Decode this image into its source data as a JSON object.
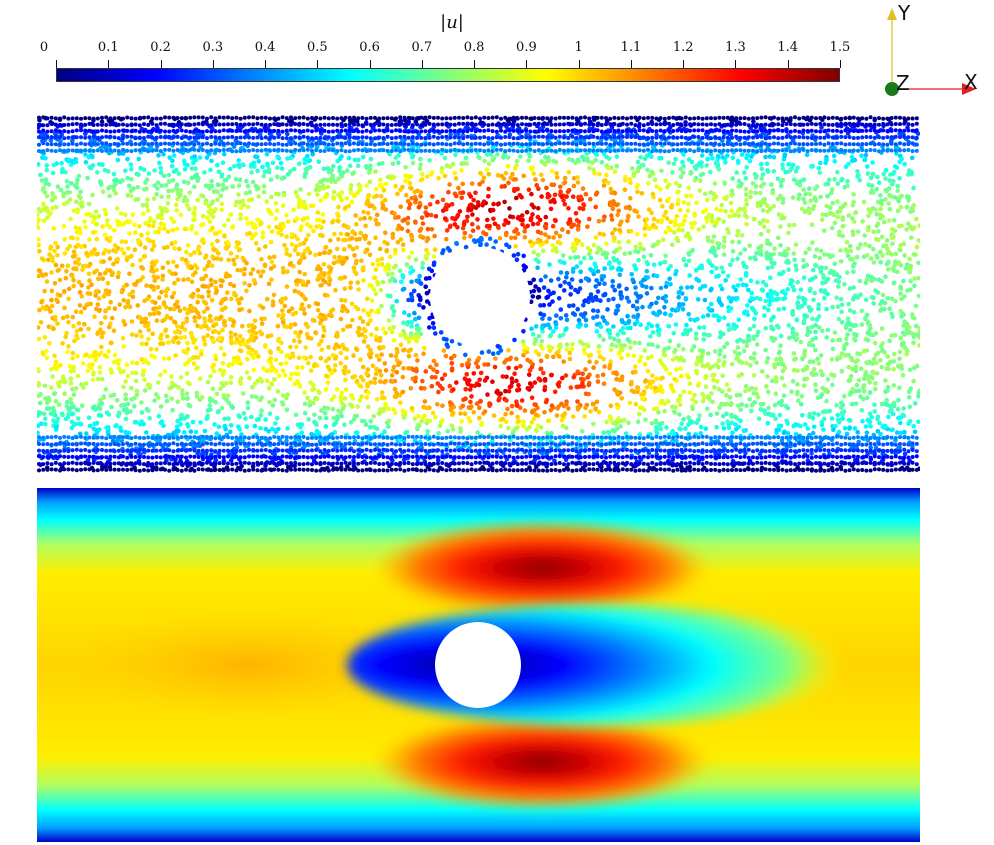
{
  "colorbar": {
    "title": "|u|",
    "ticks": [
      "0",
      "0.1",
      "0.2",
      "0.3",
      "0.4",
      "0.5",
      "0.6",
      "0.7",
      "0.8",
      "0.9",
      "1",
      "1.1",
      "1.2",
      "1.3",
      "1.4",
      "1.5"
    ],
    "range": [
      0,
      1.5
    ],
    "colormap": [
      "#000080",
      "#0000ff",
      "#0080ff",
      "#00ffff",
      "#80ff80",
      "#ffff00",
      "#ff8000",
      "#ff0000",
      "#800000"
    ]
  },
  "axes": {
    "x_label": "X",
    "y_label": "Y",
    "z_label": "Z",
    "x_color": "#e02020",
    "y_color": "#e0c020",
    "z_color": "#1a7a1a"
  },
  "panels": {
    "particles": "particle-field",
    "continuum": "continuum-field"
  }
}
